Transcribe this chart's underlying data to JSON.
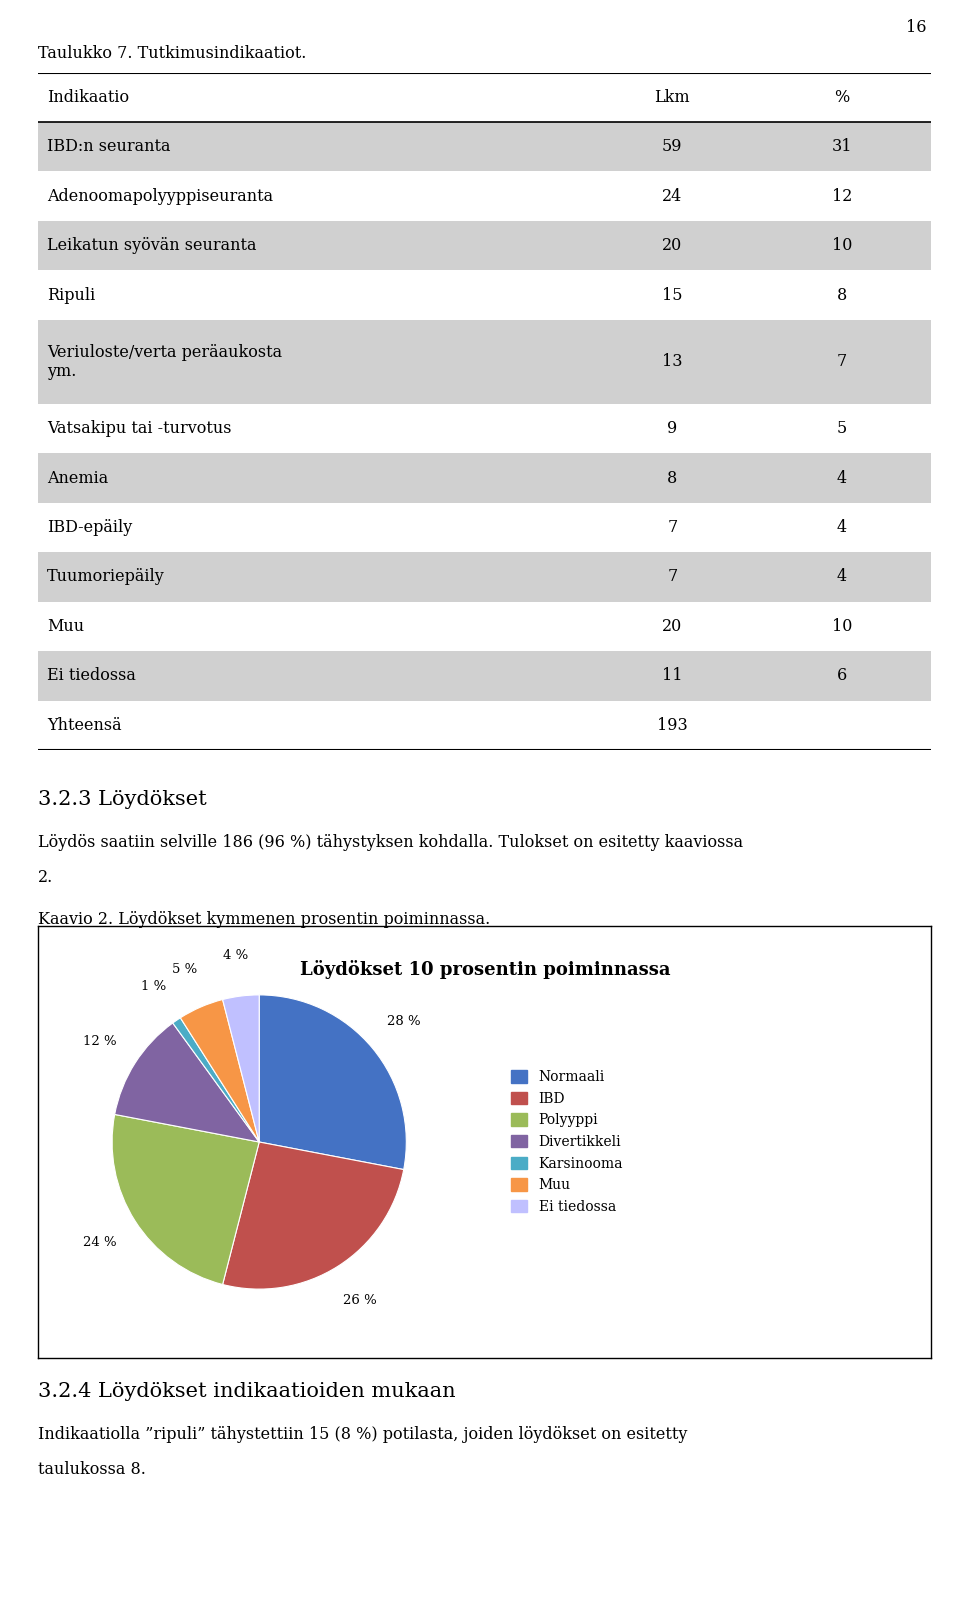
{
  "page_number": "16",
  "table_title": "Taulukko 7. Tutkimusindikaatiot.",
  "table_headers": [
    "Indikaatio",
    "Lkm",
    "%"
  ],
  "table_rows": [
    [
      "IBD:n seuranta",
      "59",
      "31"
    ],
    [
      "Adenoomapolyyppiseuranta",
      "24",
      "12"
    ],
    [
      "Leikatun syövän seuranta",
      "20",
      "10"
    ],
    [
      "Ripuli",
      "15",
      "8"
    ],
    [
      "Veriuloste/verta peräaukosta\nym.",
      "13",
      "7"
    ],
    [
      "Vatsakipu tai -turvotus",
      "9",
      "5"
    ],
    [
      "Anemia",
      "8",
      "4"
    ],
    [
      "IBD-epäily",
      "7",
      "4"
    ],
    [
      "Tuumoriepäily",
      "7",
      "4"
    ],
    [
      "Muu",
      "20",
      "10"
    ],
    [
      "Ei tiedossa",
      "11",
      "6"
    ],
    [
      "Yhteensä",
      "193",
      ""
    ]
  ],
  "shaded_rows": [
    0,
    2,
    4,
    6,
    8,
    10
  ],
  "row_heights": [
    1,
    1,
    1,
    1,
    1.7,
    1,
    1,
    1,
    1,
    1,
    1,
    1
  ],
  "section_heading": "3.2.3 Löydökset",
  "section_text1": "Löydös saatiin selville 186 (96 %) tähystyksen kohdalla. Tulokset on esitetty kaaviossa",
  "section_text2": "2.",
  "chart_caption": "Kaavio 2. Löydökset kymmenen prosentin poiminnassa.",
  "chart_title": "Löydökset 10 prosentin poiminnassa",
  "pie_labels": [
    "Normaali",
    "IBD",
    "Polyyppi",
    "Divertikkeli",
    "Karsinooma",
    "Muu",
    "Ei tiedossa"
  ],
  "pie_values": [
    28,
    26,
    24,
    12,
    1,
    5,
    4
  ],
  "pie_colors": [
    "#4472C4",
    "#C0504D",
    "#9BBB59",
    "#8064A2",
    "#4BACC6",
    "#F79646",
    "#C0C0FF"
  ],
  "pie_pct_labels": [
    "28 %",
    "26 %",
    "24 %",
    "12 %",
    "1 %",
    "5 %",
    "4 %"
  ],
  "bottom_heading": "3.2.4 Löydökset indikaatioiden mukaan",
  "bottom_text": "Indikaatiolla ”ripuli” tähystettiin 15 (8 %) potilasta, joiden löydökset on esitetty",
  "bottom_text2": "taulukossa 8.",
  "bg_color": "#ffffff",
  "shaded_color": "#d0d0d0",
  "text_color": "#000000",
  "font_family": "DejaVu Serif"
}
